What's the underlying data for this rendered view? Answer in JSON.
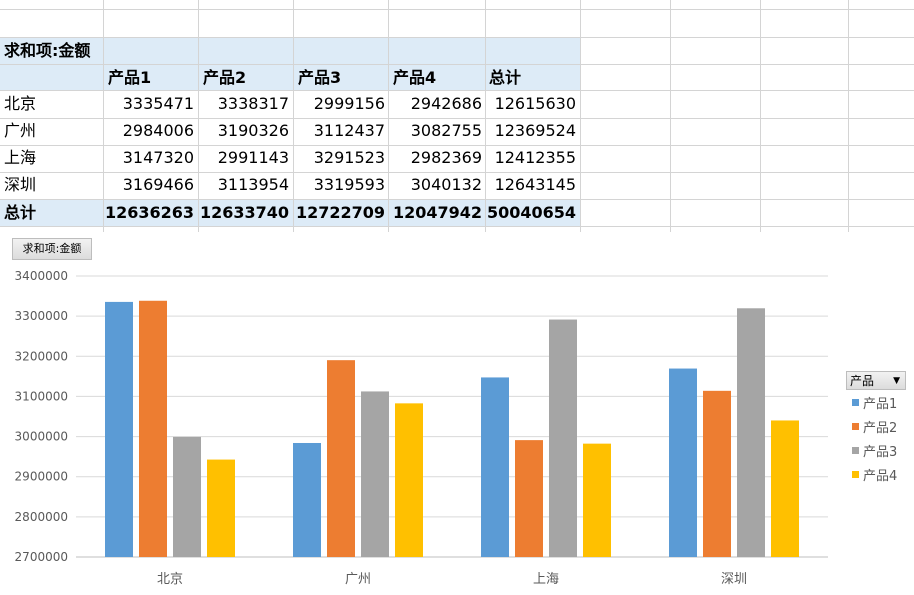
{
  "pivot": {
    "title": "求和项:金额",
    "headers": [
      "产品1",
      "产品2",
      "产品3",
      "产品4",
      "总计"
    ],
    "rows": [
      {
        "label": "北京",
        "values": [
          "3335471",
          "3338317",
          "2999156",
          "2942686",
          "12615630"
        ]
      },
      {
        "label": "广州",
        "values": [
          "2984006",
          "3190326",
          "3112437",
          "3082755",
          "12369524"
        ]
      },
      {
        "label": "上海",
        "values": [
          "3147320",
          "2991143",
          "3291523",
          "2982369",
          "12412355"
        ]
      },
      {
        "label": "深圳",
        "values": [
          "3169466",
          "3113954",
          "3319593",
          "3040132",
          "12643145"
        ]
      }
    ],
    "total": {
      "label": "总计",
      "values": [
        "12636263",
        "12633740",
        "12722709",
        "12047942",
        "50040654"
      ]
    }
  },
  "chart": {
    "field_button": "求和项:金额",
    "legend_title": "产品",
    "legend_arrow": "▼"
  },
  "chart_data": {
    "type": "bar",
    "categories": [
      "北京",
      "广州",
      "上海",
      "深圳"
    ],
    "series": [
      {
        "name": "产品1",
        "color": "#5b9bd5",
        "values": [
          3335471,
          2984006,
          3147320,
          3169466
        ]
      },
      {
        "name": "产品2",
        "color": "#ed7d31",
        "values": [
          3338317,
          3190326,
          2991143,
          3113954
        ]
      },
      {
        "name": "产品3",
        "color": "#a5a5a5",
        "values": [
          2999156,
          3112437,
          3291523,
          3319593
        ]
      },
      {
        "name": "产品4",
        "color": "#ffc000",
        "values": [
          2942686,
          3082755,
          2982369,
          3040132
        ]
      }
    ],
    "ylim": [
      2700000,
      3400000
    ],
    "yticks": [
      "2700000",
      "2800000",
      "2900000",
      "3000000",
      "3100000",
      "3200000",
      "3300000",
      "3400000"
    ],
    "grid": true,
    "legend_position": "right"
  }
}
